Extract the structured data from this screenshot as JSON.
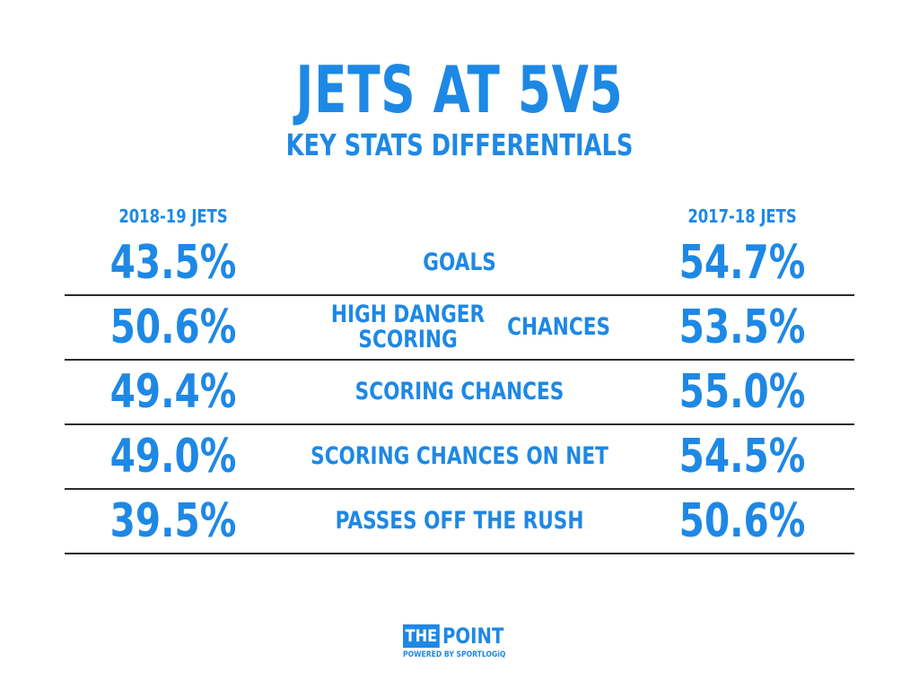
{
  "chart_data": {
    "type": "table",
    "title": "JETS AT 5V5",
    "subtitle": "KEY STATS DIFFERENTIALS",
    "columns": [
      "2018-19 JETS",
      "2017-18 JETS"
    ],
    "rows": [
      {
        "label": "GOALS",
        "label_lines": [
          "GOALS"
        ],
        "left": "43.5%",
        "right": "54.7%"
      },
      {
        "label": "HIGH DANGER SCORING CHANCES",
        "label_lines": [
          "HIGH DANGER SCORING",
          "CHANCES"
        ],
        "left": "50.6%",
        "right": "53.5%"
      },
      {
        "label": "SCORING CHANCES",
        "label_lines": [
          "SCORING CHANCES"
        ],
        "left": "49.4%",
        "right": "55.0%"
      },
      {
        "label": "SCORING CHANCES ON NET",
        "label_lines": [
          "SCORING CHANCES ON NET"
        ],
        "left": "49.0%",
        "right": "54.5%"
      },
      {
        "label": "PASSES OFF THE RUSH",
        "label_lines": [
          "PASSES OFF THE RUSH"
        ],
        "left": "39.5%",
        "right": "50.6%"
      }
    ]
  },
  "logo": {
    "the": "THE",
    "point": "POINT",
    "powered": "POWERED BY SPORTLOGiQ"
  },
  "colors": {
    "accent": "#1e88e5",
    "rule": "#2b2b2b"
  }
}
